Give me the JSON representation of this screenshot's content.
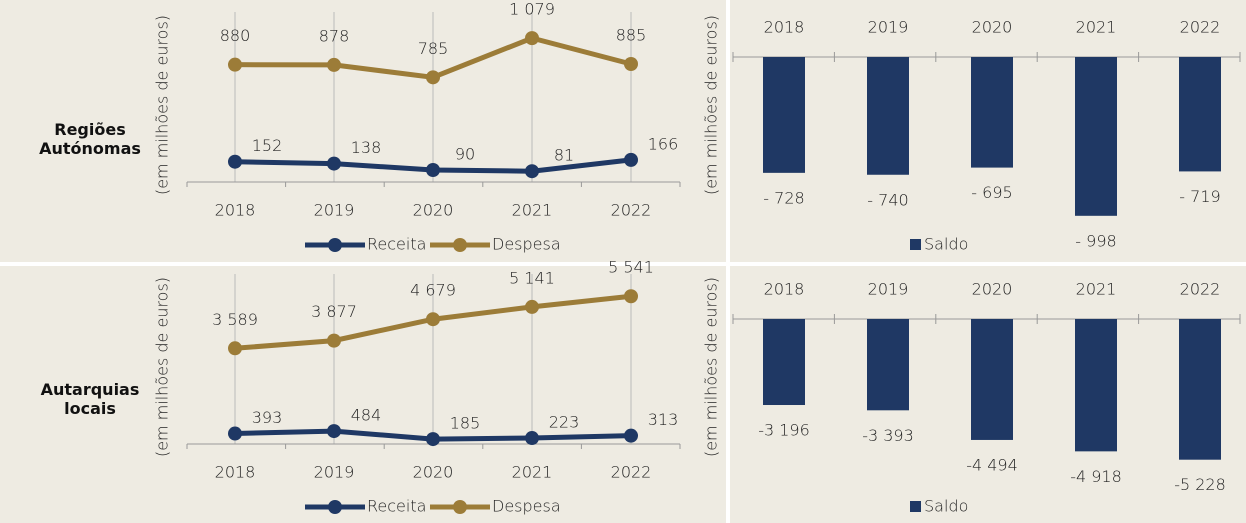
{
  "row_labels": [
    "Regiões Autónomas",
    "Autarquias locais"
  ],
  "chart_data": [
    {
      "type": "line",
      "y_label": "(em milhões de euros)",
      "categories": [
        "2018",
        "2019",
        "2020",
        "2021",
        "2022"
      ],
      "ylim": [
        0,
        1200
      ],
      "series": [
        {
          "name": "Receita",
          "color": "#1f3864",
          "values": [
            152,
            138,
            90,
            81,
            166
          ],
          "value_labels": [
            "152",
            "138",
            "90",
            "81",
            "166"
          ]
        },
        {
          "name": "Despesa",
          "color": "#9c7c38",
          "values": [
            880,
            878,
            785,
            1079,
            885
          ],
          "value_labels": [
            "880",
            "878",
            "785",
            "1 079",
            "885"
          ]
        }
      ]
    },
    {
      "type": "bar",
      "y_label": "(em milhões de euros)",
      "categories": [
        "2018",
        "2019",
        "2020",
        "2021",
        "2022"
      ],
      "ylim": [
        -1150,
        0
      ],
      "series": [
        {
          "name": "Saldo",
          "color": "#1f3864",
          "values": [
            -728,
            -740,
            -695,
            -998,
            -719
          ],
          "value_labels": [
            "- 728",
            "- 740",
            "- 695",
            "- 998",
            "- 719"
          ]
        }
      ]
    },
    {
      "type": "line",
      "y_label": "(em milhões de euros)",
      "categories": [
        "2018",
        "2019",
        "2020",
        "2021",
        "2022"
      ],
      "ylim": [
        0,
        6000
      ],
      "series": [
        {
          "name": "Receita",
          "color": "#1f3864",
          "values": [
            393,
            484,
            185,
            223,
            313
          ],
          "value_labels": [
            "393",
            "484",
            "185",
            "223",
            "313"
          ]
        },
        {
          "name": "Despesa",
          "color": "#9c7c38",
          "values": [
            3589,
            3877,
            4679,
            5141,
            5541
          ],
          "value_labels": [
            "3 589",
            "3 877",
            "4 679",
            "5 141",
            "5 541"
          ]
        }
      ]
    },
    {
      "type": "bar",
      "y_label": "(em milhões de euros)",
      "categories": [
        "2018",
        "2019",
        "2020",
        "2021",
        "2022"
      ],
      "ylim": [
        -6800,
        0
      ],
      "series": [
        {
          "name": "Saldo",
          "color": "#1f3864",
          "values": [
            -3196,
            -3393,
            -4494,
            -4918,
            -5228
          ],
          "value_labels": [
            "-3 196",
            "-3 393",
            "-4 494",
            "-4 918",
            "-5 228"
          ]
        }
      ]
    }
  ]
}
